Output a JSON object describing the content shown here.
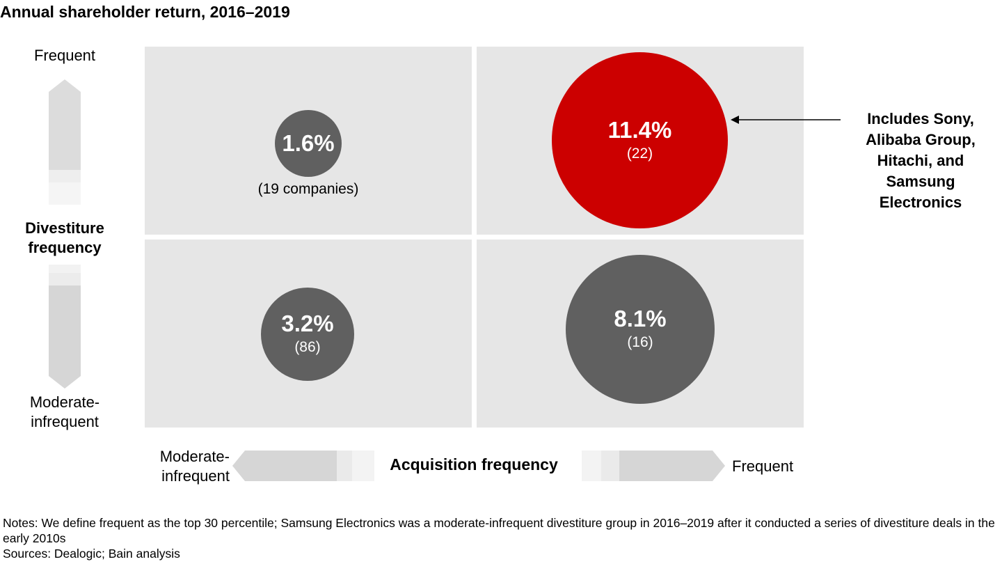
{
  "title": "Annual shareholder return, 2016–2019",
  "y_axis": {
    "label_line1": "Divestiture",
    "label_line2": "frequency",
    "top": "Frequent",
    "bottom_line1": "Moderate-",
    "bottom_line2": "infrequent"
  },
  "x_axis": {
    "label": "Acquisition frequency",
    "left_line1": "Moderate-",
    "left_line2": "infrequent",
    "right": "Frequent"
  },
  "chart_data": {
    "type": "bubble-matrix",
    "title": "Annual shareholder return, 2016–2019",
    "xlabel": "Acquisition frequency",
    "ylabel": "Divestiture frequency",
    "x_categories": [
      "Moderate-infrequent",
      "Frequent"
    ],
    "y_categories": [
      "Moderate-infrequent",
      "Frequent"
    ],
    "cells": [
      {
        "acquisition": "Moderate-infrequent",
        "divestiture": "Frequent",
        "value_label": "1.6%",
        "value": 1.6,
        "count_label": "(19 companies)",
        "count": 19,
        "color": "#606060"
      },
      {
        "acquisition": "Frequent",
        "divestiture": "Frequent",
        "value_label": "11.4%",
        "value": 11.4,
        "count_label": "(22)",
        "count": 22,
        "color": "#cc0000"
      },
      {
        "acquisition": "Moderate-infrequent",
        "divestiture": "Moderate-infrequent",
        "value_label": "3.2%",
        "value": 3.2,
        "count_label": "(86)",
        "count": 86,
        "color": "#606060"
      },
      {
        "acquisition": "Frequent",
        "divestiture": "Moderate-infrequent",
        "value_label": "8.1%",
        "value": 8.1,
        "count_label": "(16)",
        "count": 16,
        "color": "#606060"
      }
    ]
  },
  "callout": {
    "lines": [
      "Includes Sony,",
      "Alibaba Group,",
      "Hitachi, and",
      "Samsung",
      "Electronics"
    ]
  },
  "notes": {
    "notes_text": "Notes: We define frequent as the top 30 percentile; Samsung Electronics was a moderate-infrequent divestiture group in 2016–2019 after it conducted a series of divestiture deals in the early 2010s",
    "sources_text": "Sources: Dealogic; Bain analysis"
  },
  "colors": {
    "quadrant_bg": "#e6e6e6",
    "bubble_gray": "#606060",
    "bubble_red": "#cc0000"
  }
}
